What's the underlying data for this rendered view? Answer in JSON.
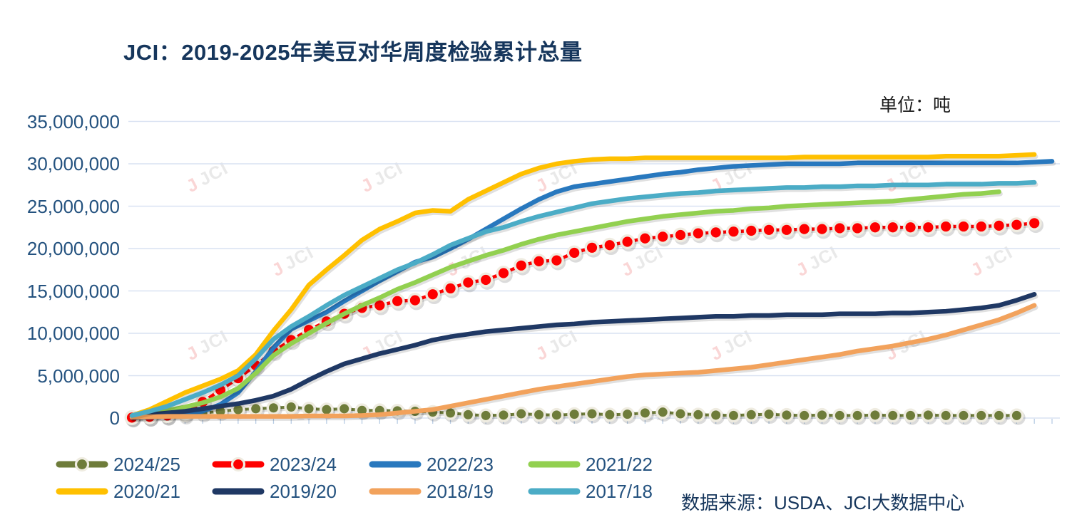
{
  "title": "JCI：2019-2025年美豆对华周度检验累计总量",
  "unit_label": "单位：吨",
  "source_label": "数据来源：USDA、JCI大数据中心",
  "watermark_text": "JCI",
  "colors": {
    "title_text": "#16365C",
    "axis_text": "#24527F",
    "gridline": "#D9E2F2",
    "tick": "#B8CCE4",
    "marker_outline": "#EFECE1",
    "page_background": "#FFFFFF"
  },
  "chart_data": {
    "type": "line",
    "title": "JCI：2019-2025年美豆对华周度检验累计总量",
    "ylabel": "吨",
    "ylim": [
      0,
      35000000
    ],
    "y_tick_labels": [
      "0",
      "5,000,000",
      "10,000,000",
      "15,000,000",
      "20,000,000",
      "25,000,000",
      "30,000,000",
      "35,000,000"
    ],
    "x_tick_count": 53,
    "x_axis_labels_visible": false,
    "grid": true,
    "legend_position": "bottom",
    "values_unit": "millions_of_tons",
    "series": [
      {
        "name": "2024/25",
        "color": "#6E7C3A",
        "marker": true,
        "values": [
          0.05,
          0.1,
          0.2,
          0.35,
          0.6,
          0.8,
          1.0,
          1.1,
          1.2,
          1.3,
          1.1,
          1.0,
          1.1,
          0.9,
          0.9,
          0.85,
          0.8,
          0.7,
          0.6,
          0.4,
          0.3,
          0.35,
          0.5,
          0.4,
          0.35,
          0.45,
          0.5,
          0.4,
          0.45,
          0.6,
          0.7,
          0.5,
          0.4,
          0.35,
          0.3,
          0.4,
          0.45,
          0.35,
          0.3,
          0.35,
          0.3,
          0.3,
          0.35,
          0.3,
          0.3,
          0.35,
          0.3,
          0.3,
          0.3,
          0.3,
          0.3
        ]
      },
      {
        "name": "2023/24",
        "color": "#FE0000",
        "marker": true,
        "values": [
          0.05,
          0.15,
          0.3,
          0.6,
          1.9,
          3.3,
          4.7,
          6.2,
          7.9,
          9.2,
          10.4,
          11.4,
          12.3,
          13.0,
          13.3,
          13.8,
          13.9,
          14.6,
          15.3,
          16.0,
          16.3,
          17.1,
          18.0,
          18.5,
          18.6,
          19.5,
          20.1,
          20.4,
          20.8,
          21.2,
          21.4,
          21.6,
          21.8,
          21.9,
          22.0,
          22.1,
          22.2,
          22.2,
          22.3,
          22.3,
          22.4,
          22.4,
          22.5,
          22.5,
          22.5,
          22.5,
          22.6,
          22.6,
          22.6,
          22.7,
          22.8,
          23.0
        ]
      },
      {
        "name": "2022/23",
        "color": "#2878BE",
        "marker": false,
        "values": [
          0.05,
          0.1,
          0.2,
          0.4,
          0.8,
          1.6,
          3.0,
          5.5,
          8.3,
          10.5,
          11.5,
          12.5,
          13.8,
          15.0,
          16.2,
          17.3,
          18.4,
          19.0,
          20.0,
          21.1,
          22.3,
          23.5,
          24.7,
          25.8,
          26.7,
          27.3,
          27.6,
          27.9,
          28.2,
          28.5,
          28.8,
          29.0,
          29.3,
          29.5,
          29.7,
          29.8,
          29.9,
          30.0,
          30.0,
          30.0,
          30.0,
          30.1,
          30.1,
          30.1,
          30.1,
          30.1,
          30.1,
          30.1,
          30.1,
          30.1,
          30.1,
          30.2,
          30.3
        ]
      },
      {
        "name": "2021/22",
        "color": "#92D050",
        "marker": false,
        "values": [
          0.2,
          0.5,
          0.9,
          1.3,
          1.8,
          2.5,
          3.5,
          5.3,
          7.4,
          8.8,
          10.0,
          11.2,
          12.3,
          13.3,
          14.2,
          15.2,
          16.0,
          16.9,
          17.8,
          18.5,
          19.2,
          19.8,
          20.5,
          21.1,
          21.6,
          22.0,
          22.4,
          22.8,
          23.2,
          23.5,
          23.8,
          24.0,
          24.2,
          24.4,
          24.5,
          24.7,
          24.8,
          25.0,
          25.1,
          25.2,
          25.3,
          25.4,
          25.5,
          25.6,
          25.8,
          26.0,
          26.2,
          26.4,
          26.5,
          26.7
        ]
      },
      {
        "name": "2020/21",
        "color": "#FFC000",
        "marker": false,
        "values": [
          0.3,
          1.0,
          2.0,
          3.0,
          3.8,
          4.6,
          5.6,
          7.5,
          10.3,
          12.8,
          15.7,
          17.5,
          19.2,
          21.0,
          22.3,
          23.2,
          24.2,
          24.5,
          24.4,
          25.8,
          26.8,
          27.8,
          28.8,
          29.5,
          30.0,
          30.3,
          30.5,
          30.6,
          30.6,
          30.7,
          30.7,
          30.7,
          30.7,
          30.7,
          30.7,
          30.7,
          30.7,
          30.7,
          30.8,
          30.8,
          30.8,
          30.8,
          30.8,
          30.8,
          30.8,
          30.8,
          30.9,
          30.9,
          30.9,
          30.9,
          31.0,
          31.1
        ]
      },
      {
        "name": "2019/20",
        "color": "#1F3864",
        "marker": false,
        "values": [
          0.2,
          0.4,
          0.6,
          0.8,
          1.1,
          1.4,
          1.7,
          2.1,
          2.6,
          3.4,
          4.5,
          5.5,
          6.4,
          7.0,
          7.6,
          8.1,
          8.6,
          9.2,
          9.6,
          9.9,
          10.2,
          10.4,
          10.6,
          10.8,
          11.0,
          11.1,
          11.3,
          11.4,
          11.5,
          11.6,
          11.7,
          11.8,
          11.9,
          12.0,
          12.0,
          12.1,
          12.1,
          12.2,
          12.2,
          12.2,
          12.3,
          12.3,
          12.3,
          12.4,
          12.4,
          12.5,
          12.6,
          12.8,
          13.0,
          13.3,
          13.9,
          14.6
        ]
      },
      {
        "name": "2018/19",
        "color": "#F2A25C",
        "marker": false,
        "values": [
          0.1,
          0.15,
          0.2,
          0.2,
          0.2,
          0.2,
          0.2,
          0.2,
          0.2,
          0.2,
          0.25,
          0.25,
          0.25,
          0.3,
          0.4,
          0.6,
          0.8,
          1.0,
          1.4,
          1.8,
          2.2,
          2.6,
          3.0,
          3.4,
          3.7,
          4.0,
          4.3,
          4.6,
          4.9,
          5.1,
          5.2,
          5.3,
          5.4,
          5.6,
          5.8,
          6.0,
          6.3,
          6.6,
          6.9,
          7.2,
          7.5,
          7.9,
          8.2,
          8.5,
          8.9,
          9.3,
          9.8,
          10.4,
          11.0,
          11.6,
          12.4,
          13.3
        ]
      },
      {
        "name": "2017/18",
        "color": "#4BACC6",
        "marker": false,
        "values": [
          0.3,
          0.8,
          1.4,
          2.2,
          3.0,
          3.9,
          5.0,
          7.0,
          9.3,
          10.8,
          12.0,
          13.3,
          14.5,
          15.5,
          16.5,
          17.5,
          18.3,
          19.3,
          20.4,
          21.2,
          22.0,
          22.5,
          23.2,
          23.8,
          24.3,
          24.8,
          25.3,
          25.6,
          25.9,
          26.1,
          26.3,
          26.5,
          26.6,
          26.8,
          26.9,
          27.0,
          27.1,
          27.2,
          27.2,
          27.3,
          27.3,
          27.4,
          27.4,
          27.5,
          27.5,
          27.5,
          27.6,
          27.6,
          27.6,
          27.7,
          27.7,
          27.8
        ]
      }
    ]
  }
}
